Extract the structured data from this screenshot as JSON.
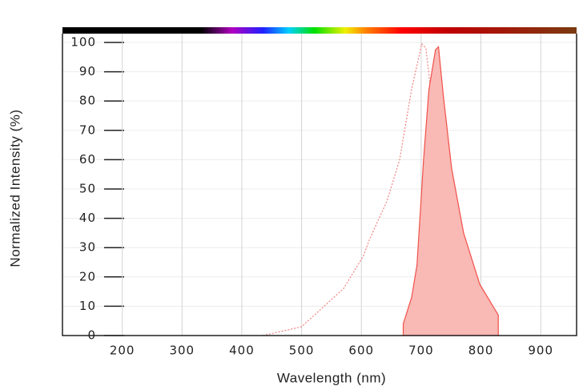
{
  "chart_data": {
    "type": "spectrum",
    "x_label": "Wavelength (nm)",
    "y_label": "Normalized Intensity (%)",
    "xlim": [
      100,
      960
    ],
    "ylim": [
      0,
      103
    ],
    "xticks": [
      200,
      300,
      400,
      500,
      600,
      700,
      800,
      900
    ],
    "yticks": [
      0,
      10,
      20,
      30,
      40,
      50,
      60,
      70,
      80,
      90,
      100
    ],
    "grid": true,
    "series": [
      {
        "kind": "line",
        "color": "#f08080",
        "x": [
          435,
          500,
          570,
          603,
          613,
          643,
          664,
          684,
          701,
          708,
          717,
          728,
          738,
          751,
          771,
          794
        ],
        "values": [
          0,
          3,
          16,
          27,
          32.5,
          46,
          60,
          84,
          99.5,
          98,
          82,
          46,
          24,
          9,
          2.5,
          0.5
        ]
      },
      {
        "kind": "area",
        "color": "#f0504a",
        "fill": "#f9b9b5",
        "x": [
          670,
          670,
          684,
          693,
          704,
          713,
          724,
          729,
          737,
          751,
          771,
          798,
          829,
          829
        ],
        "values": [
          0,
          4,
          13,
          24,
          60,
          84,
          97.5,
          98.5,
          82,
          57,
          35,
          17.5,
          7,
          0
        ]
      }
    ]
  }
}
